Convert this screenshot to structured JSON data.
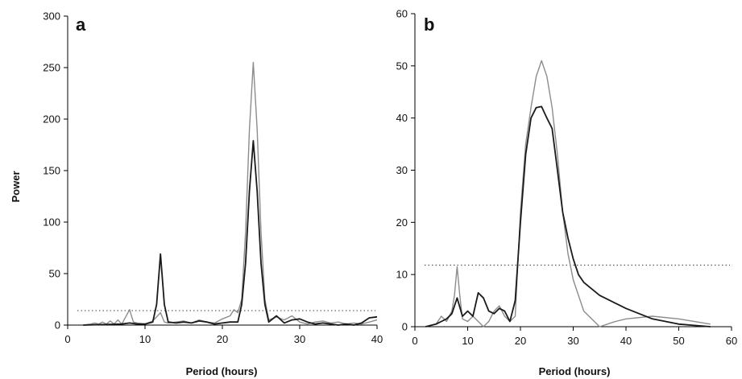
{
  "chart_data": [
    {
      "type": "line",
      "panel_label": "a",
      "xlabel": "Period (hours)",
      "ylabel": "Power",
      "xlim": [
        0,
        40
      ],
      "ylim": [
        0,
        300
      ],
      "xticks": [
        0,
        10,
        20,
        30,
        40
      ],
      "yticks": [
        0,
        50,
        100,
        150,
        200,
        250,
        300
      ],
      "grid": false,
      "threshold": {
        "y": 14,
        "style": "dotted"
      },
      "colors": {
        "series_dark": "#1a1a1a",
        "series_light": "#8c8c8c",
        "threshold": "#555555"
      },
      "series": [
        {
          "style": "dark",
          "x": [
            2,
            7,
            8,
            9,
            10,
            11,
            11.5,
            12,
            12.5,
            13,
            14,
            15,
            16,
            17,
            18,
            19,
            20,
            21,
            22,
            22.5,
            23,
            23.5,
            24,
            24.5,
            25,
            25.5,
            26,
            27,
            28,
            29,
            30,
            31,
            32,
            33,
            34,
            35,
            36,
            37,
            38,
            39,
            40
          ],
          "y": [
            0,
            1,
            2,
            1,
            1,
            3,
            20,
            69,
            20,
            3,
            2,
            3,
            2,
            4,
            3,
            1,
            2,
            3,
            3,
            20,
            60,
            130,
            179,
            130,
            60,
            20,
            3,
            9,
            2,
            5,
            6,
            3,
            1,
            2,
            1,
            0,
            1,
            0,
            2,
            7,
            8
          ]
        },
        {
          "style": "light",
          "x": [
            2,
            3,
            3.5,
            4,
            4.5,
            5,
            5.5,
            6,
            6.5,
            7,
            7.5,
            8,
            8.5,
            9,
            10,
            11,
            12,
            12.5,
            13,
            14,
            15,
            16,
            17,
            18,
            19,
            20,
            21,
            21.5,
            22,
            22.5,
            23,
            23.5,
            24,
            24.5,
            25,
            25.5,
            26,
            27,
            28,
            29,
            30,
            31,
            32,
            33,
            34,
            35,
            36,
            37,
            38,
            39,
            40
          ],
          "y": [
            0,
            1,
            2,
            1,
            3,
            1,
            4,
            1,
            5,
            1,
            8,
            15,
            3,
            2,
            1,
            4,
            12,
            3,
            2,
            3,
            4,
            2,
            5,
            3,
            2,
            6,
            9,
            15,
            12,
            25,
            90,
            190,
            255,
            190,
            90,
            25,
            5,
            8,
            5,
            9,
            3,
            1,
            3,
            4,
            2,
            3,
            1,
            2,
            1,
            3,
            5
          ]
        }
      ]
    },
    {
      "type": "line",
      "panel_label": "b",
      "xlabel": "Period (hours)",
      "ylabel": "",
      "xlim": [
        0,
        60
      ],
      "ylim": [
        0,
        60
      ],
      "xticks": [
        0,
        10,
        20,
        30,
        40,
        50,
        60
      ],
      "yticks": [
        0,
        10,
        20,
        30,
        40,
        50,
        60
      ],
      "grid": false,
      "threshold": {
        "y": 11.8,
        "style": "dotted"
      },
      "colors": {
        "series_dark": "#1a1a1a",
        "series_light": "#8c8c8c",
        "threshold": "#555555"
      },
      "series": [
        {
          "style": "dark",
          "x": [
            2,
            4,
            5,
            6,
            7,
            8,
            9,
            10,
            11,
            12,
            13,
            14,
            15,
            16,
            17,
            18,
            19,
            20,
            21,
            22,
            23,
            24,
            25,
            26,
            27,
            28,
            29,
            30,
            31,
            32,
            35,
            40,
            45,
            50,
            56
          ],
          "y": [
            0,
            0.5,
            1,
            1.5,
            2.5,
            5.5,
            2,
            3,
            2,
            6.5,
            5.5,
            3,
            2.5,
            3.5,
            3,
            1,
            5,
            20,
            33,
            40,
            42,
            42.2,
            40,
            38,
            30,
            22,
            17,
            13,
            10,
            8.5,
            6,
            3.5,
            1.5,
            0.5,
            0
          ]
        },
        {
          "style": "light",
          "x": [
            2,
            4,
            5,
            6,
            7,
            7.5,
            8,
            8.5,
            9,
            10,
            11,
            12,
            13,
            14,
            15,
            16,
            17,
            18,
            19,
            20,
            21,
            22,
            23,
            24,
            25,
            26,
            27,
            28,
            29,
            30,
            32,
            35,
            38,
            40,
            45,
            50,
            56
          ],
          "y": [
            0,
            0.5,
            2,
            1,
            3,
            6,
            11.5,
            6,
            1.5,
            1,
            2,
            1,
            0,
            1,
            3,
            4,
            2,
            1,
            2,
            22,
            35,
            42,
            48,
            51,
            48,
            42,
            33,
            22,
            14,
            9,
            3,
            0,
            1,
            1.5,
            2,
            1.5,
            0.5
          ]
        }
      ]
    }
  ]
}
